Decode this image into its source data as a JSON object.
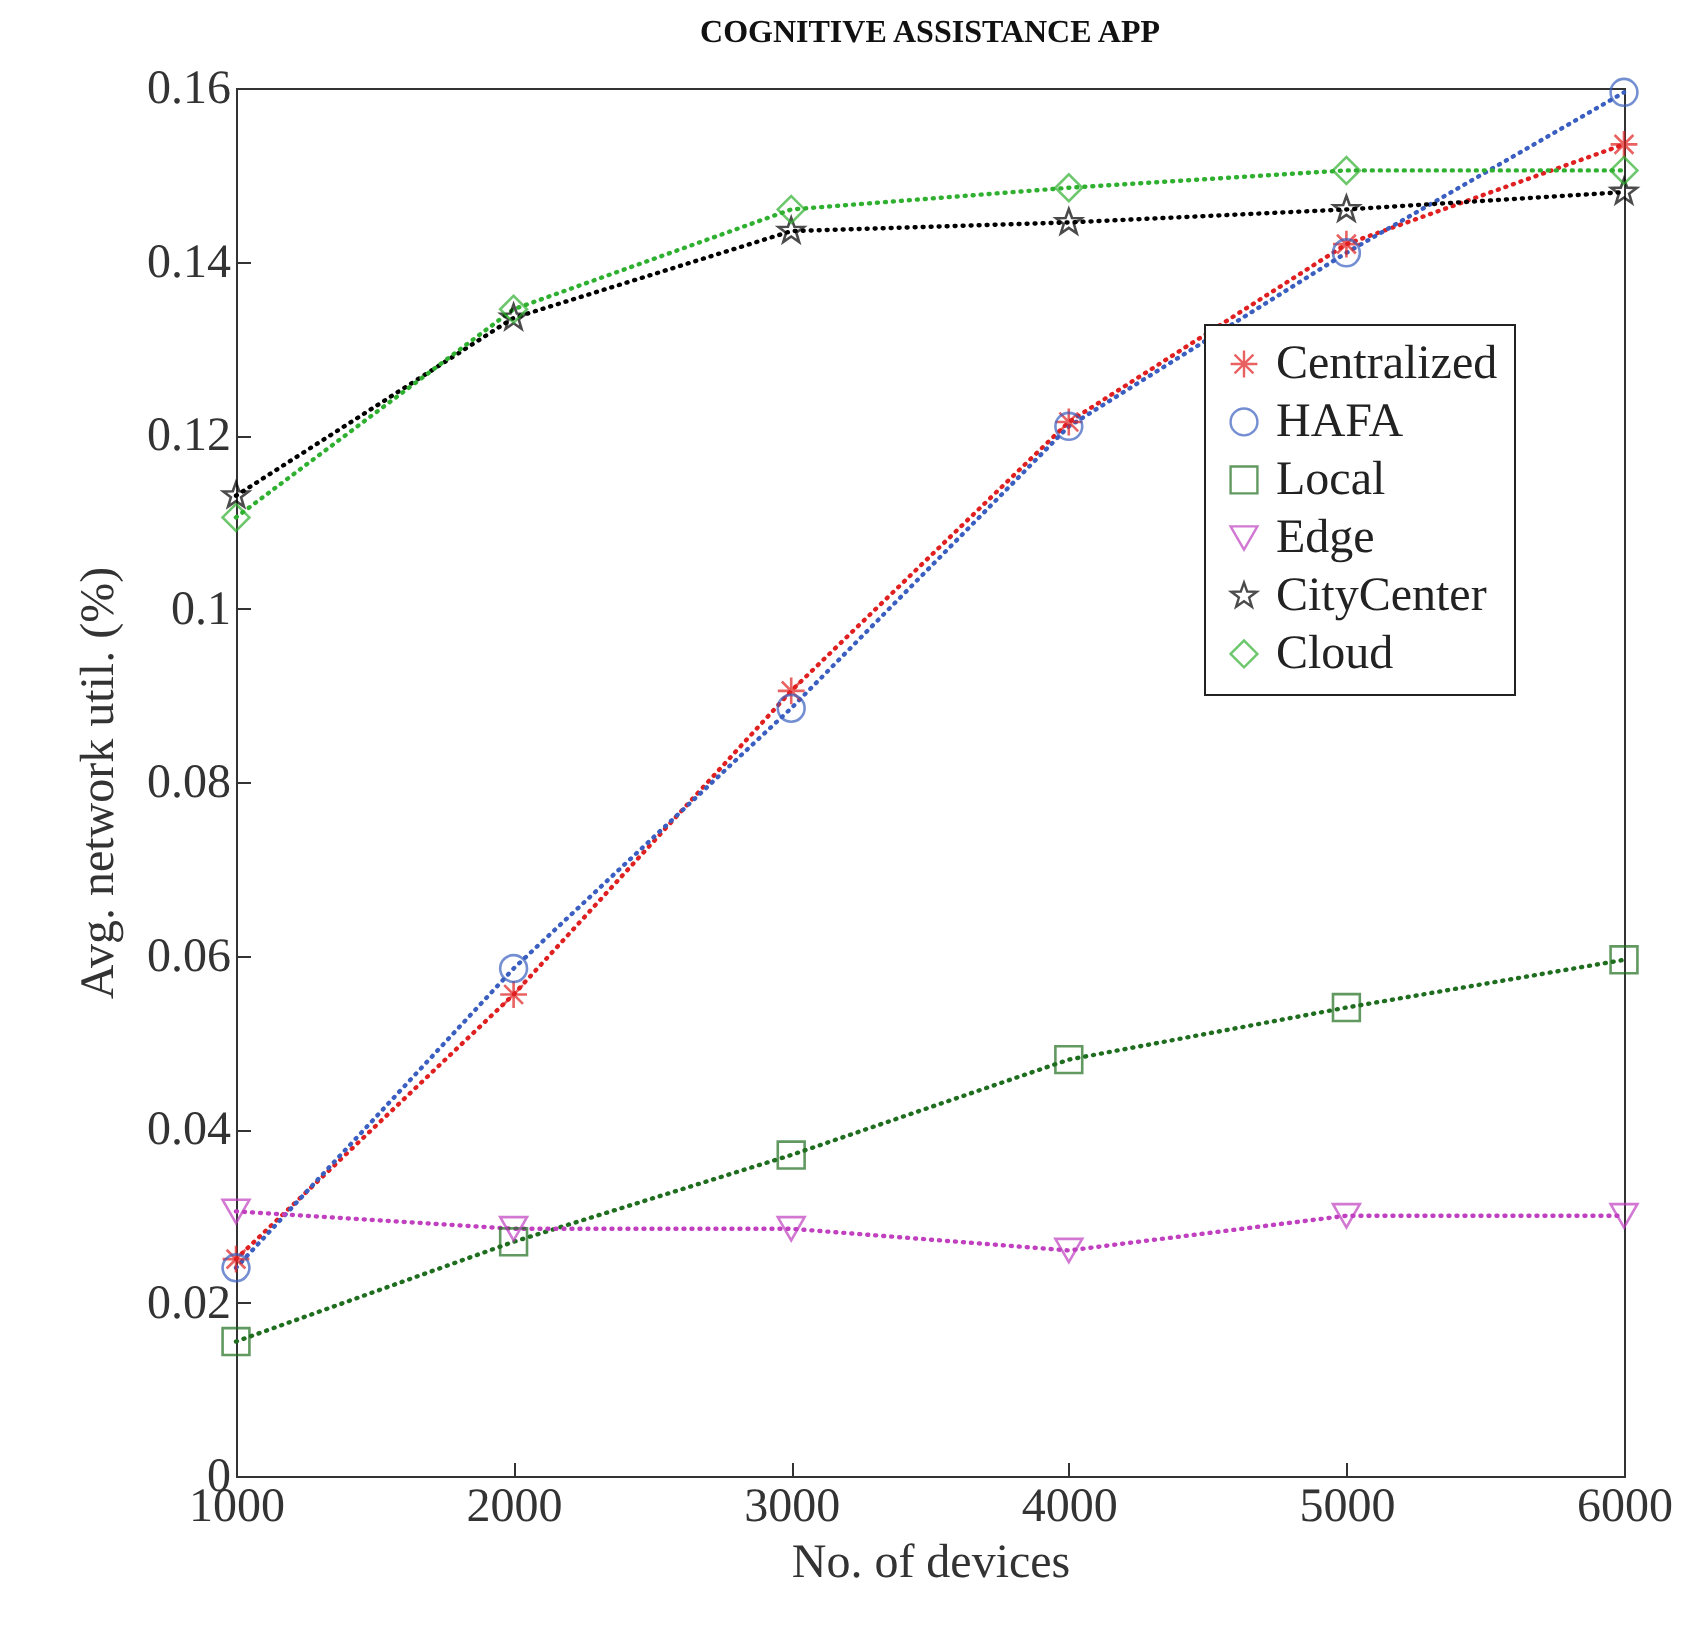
{
  "chart_data": {
    "type": "line",
    "title": "COGNITIVE ASSISTANCE APP",
    "xlabel": "No. of devices",
    "ylabel": "Avg. network util. (%)",
    "x": [
      1000,
      2000,
      3000,
      4000,
      5000,
      6000
    ],
    "series": [
      {
        "name": "Centralized",
        "color": "#e02020",
        "marker": "cross",
        "values": [
          0.025,
          0.0555,
          0.0905,
          0.1215,
          0.142,
          0.1535
        ]
      },
      {
        "name": "HAFA",
        "color": "#3a5fc0",
        "marker": "circle",
        "values": [
          0.024,
          0.0585,
          0.0885,
          0.121,
          0.141,
          0.1595
        ]
      },
      {
        "name": "Local",
        "color": "#1f6e1f",
        "marker": "square",
        "values": [
          0.0155,
          0.027,
          0.037,
          0.048,
          0.054,
          0.0595
        ]
      },
      {
        "name": "Edge",
        "color": "#c040c0",
        "marker": "triangle",
        "values": [
          0.0305,
          0.0285,
          0.0285,
          0.026,
          0.03,
          0.03
        ]
      },
      {
        "name": "CityCenter",
        "color": "#000000",
        "marker": "star",
        "values": [
          0.113,
          0.1335,
          0.1435,
          0.1445,
          0.146,
          0.148
        ]
      },
      {
        "name": "Cloud",
        "color": "#30b030",
        "marker": "diamond",
        "values": [
          0.1105,
          0.1345,
          0.146,
          0.1485,
          0.1505,
          0.1505
        ]
      }
    ],
    "xlim": [
      1000,
      6000
    ],
    "xticks": [
      1000,
      2000,
      3000,
      4000,
      5000,
      6000
    ],
    "ylim": [
      0,
      0.16
    ],
    "yticks": [
      0,
      0.02,
      0.04,
      0.06,
      0.08,
      0.1,
      0.12,
      0.14,
      0.16
    ],
    "grid": false,
    "legend": "top right",
    "line_style": "dotted"
  }
}
